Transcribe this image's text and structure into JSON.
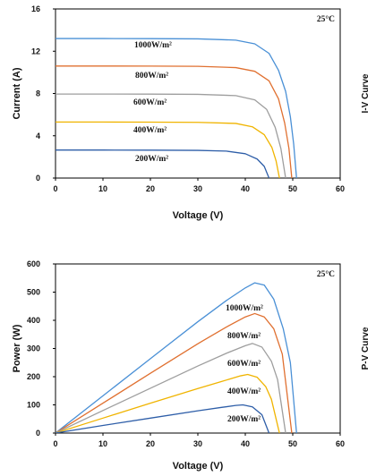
{
  "chart_data": [
    {
      "type": "line",
      "side_label": "I-V Curve",
      "xlabel": "Voltage (V)",
      "ylabel": "Current (A)",
      "xlim": [
        0,
        60
      ],
      "ylim": [
        0,
        16
      ],
      "xticks": [
        "0",
        "10",
        "20",
        "30",
        "40",
        "50",
        "60"
      ],
      "yticks": [
        "0",
        "4",
        "8",
        "12",
        "16"
      ],
      "annotation": "25°C",
      "grid": false,
      "series": [
        {
          "name": "1000W/m²",
          "color": "#4a90d6",
          "isc": 13.2,
          "voc": 50.8,
          "x": [
            0,
            10,
            20,
            30,
            38,
            42,
            45,
            47,
            48.5,
            49.5,
            50.2,
            50.8
          ],
          "y": [
            13.2,
            13.2,
            13.19,
            13.17,
            13.05,
            12.7,
            11.8,
            10.2,
            8.2,
            5.8,
            3.2,
            0
          ]
        },
        {
          "name": "800W/m²",
          "color": "#e07030",
          "isc": 10.6,
          "voc": 49.8,
          "x": [
            0,
            10,
            20,
            30,
            38,
            42,
            45,
            47,
            48.3,
            49.2,
            49.8
          ],
          "y": [
            10.6,
            10.6,
            10.59,
            10.57,
            10.45,
            10.1,
            9.2,
            7.5,
            5.2,
            2.8,
            0
          ]
        },
        {
          "name": "600W/m²",
          "color": "#9e9e9e",
          "isc": 7.95,
          "voc": 48.5,
          "x": [
            0,
            10,
            20,
            30,
            38,
            42,
            44.5,
            46.3,
            47.5,
            48.5
          ],
          "y": [
            7.95,
            7.95,
            7.94,
            7.92,
            7.8,
            7.4,
            6.5,
            4.8,
            2.8,
            0
          ]
        },
        {
          "name": "400W/m²",
          "color": "#f0b400",
          "isc": 5.3,
          "voc": 47.2,
          "x": [
            0,
            10,
            20,
            30,
            38,
            41.5,
            44,
            45.6,
            46.5,
            47.2
          ],
          "y": [
            5.3,
            5.3,
            5.29,
            5.27,
            5.17,
            4.85,
            4.1,
            2.9,
            1.6,
            0
          ]
        },
        {
          "name": "200W/m²",
          "color": "#2e5ea8",
          "isc": 2.65,
          "voc": 45.0,
          "x": [
            0,
            10,
            20,
            30,
            36,
            40,
            42.5,
            44,
            45.0
          ],
          "y": [
            2.65,
            2.65,
            2.64,
            2.62,
            2.55,
            2.3,
            1.8,
            1.1,
            0
          ]
        }
      ]
    },
    {
      "type": "line",
      "side_label": "P-V Curve",
      "xlabel": "Voltage (V)",
      "ylabel": "Power (W)",
      "xlim": [
        0,
        60
      ],
      "ylim": [
        0,
        600
      ],
      "xticks": [
        "0",
        "10",
        "20",
        "30",
        "40",
        "50",
        "60"
      ],
      "yticks": [
        "0",
        "100",
        "200",
        "300",
        "400",
        "500",
        "600"
      ],
      "annotation": "25°C",
      "grid": false,
      "series": [
        {
          "name": "1000W/m²",
          "color": "#4a90d6",
          "x": [
            0,
            10,
            20,
            30,
            36,
            40,
            42,
            44,
            46,
            48,
            49.5,
            50.8
          ],
          "y": [
            0,
            132,
            264,
            395,
            470,
            515,
            533,
            525,
            475,
            370,
            250,
            0
          ]
        },
        {
          "name": "800W/m²",
          "color": "#e07030",
          "x": [
            0,
            10,
            20,
            30,
            36,
            40,
            42,
            44,
            46,
            47.8,
            49.8
          ],
          "y": [
            0,
            106,
            212,
            317,
            376,
            412,
            424,
            412,
            370,
            280,
            0
          ]
        },
        {
          "name": "600W/m²",
          "color": "#9e9e9e",
          "x": [
            0,
            10,
            20,
            30,
            36,
            40,
            41.5,
            43.5,
            45.5,
            46.8,
            48.5
          ],
          "y": [
            0,
            80,
            159,
            238,
            283,
            310,
            318,
            305,
            255,
            190,
            0
          ]
        },
        {
          "name": "400W/m²",
          "color": "#f0b400",
          "x": [
            0,
            10,
            20,
            30,
            35,
            39,
            40.5,
            42.5,
            44.3,
            45.5,
            47.2
          ],
          "y": [
            0,
            53,
            106,
            158,
            183,
            203,
            208,
            198,
            165,
            120,
            0
          ]
        },
        {
          "name": "200W/m²",
          "color": "#2e5ea8",
          "x": [
            0,
            10,
            20,
            30,
            35,
            38,
            39.5,
            41.5,
            43.5,
            45.0
          ],
          "y": [
            0,
            27,
            53,
            79,
            91,
            98,
            100,
            93,
            65,
            0
          ]
        }
      ]
    }
  ]
}
